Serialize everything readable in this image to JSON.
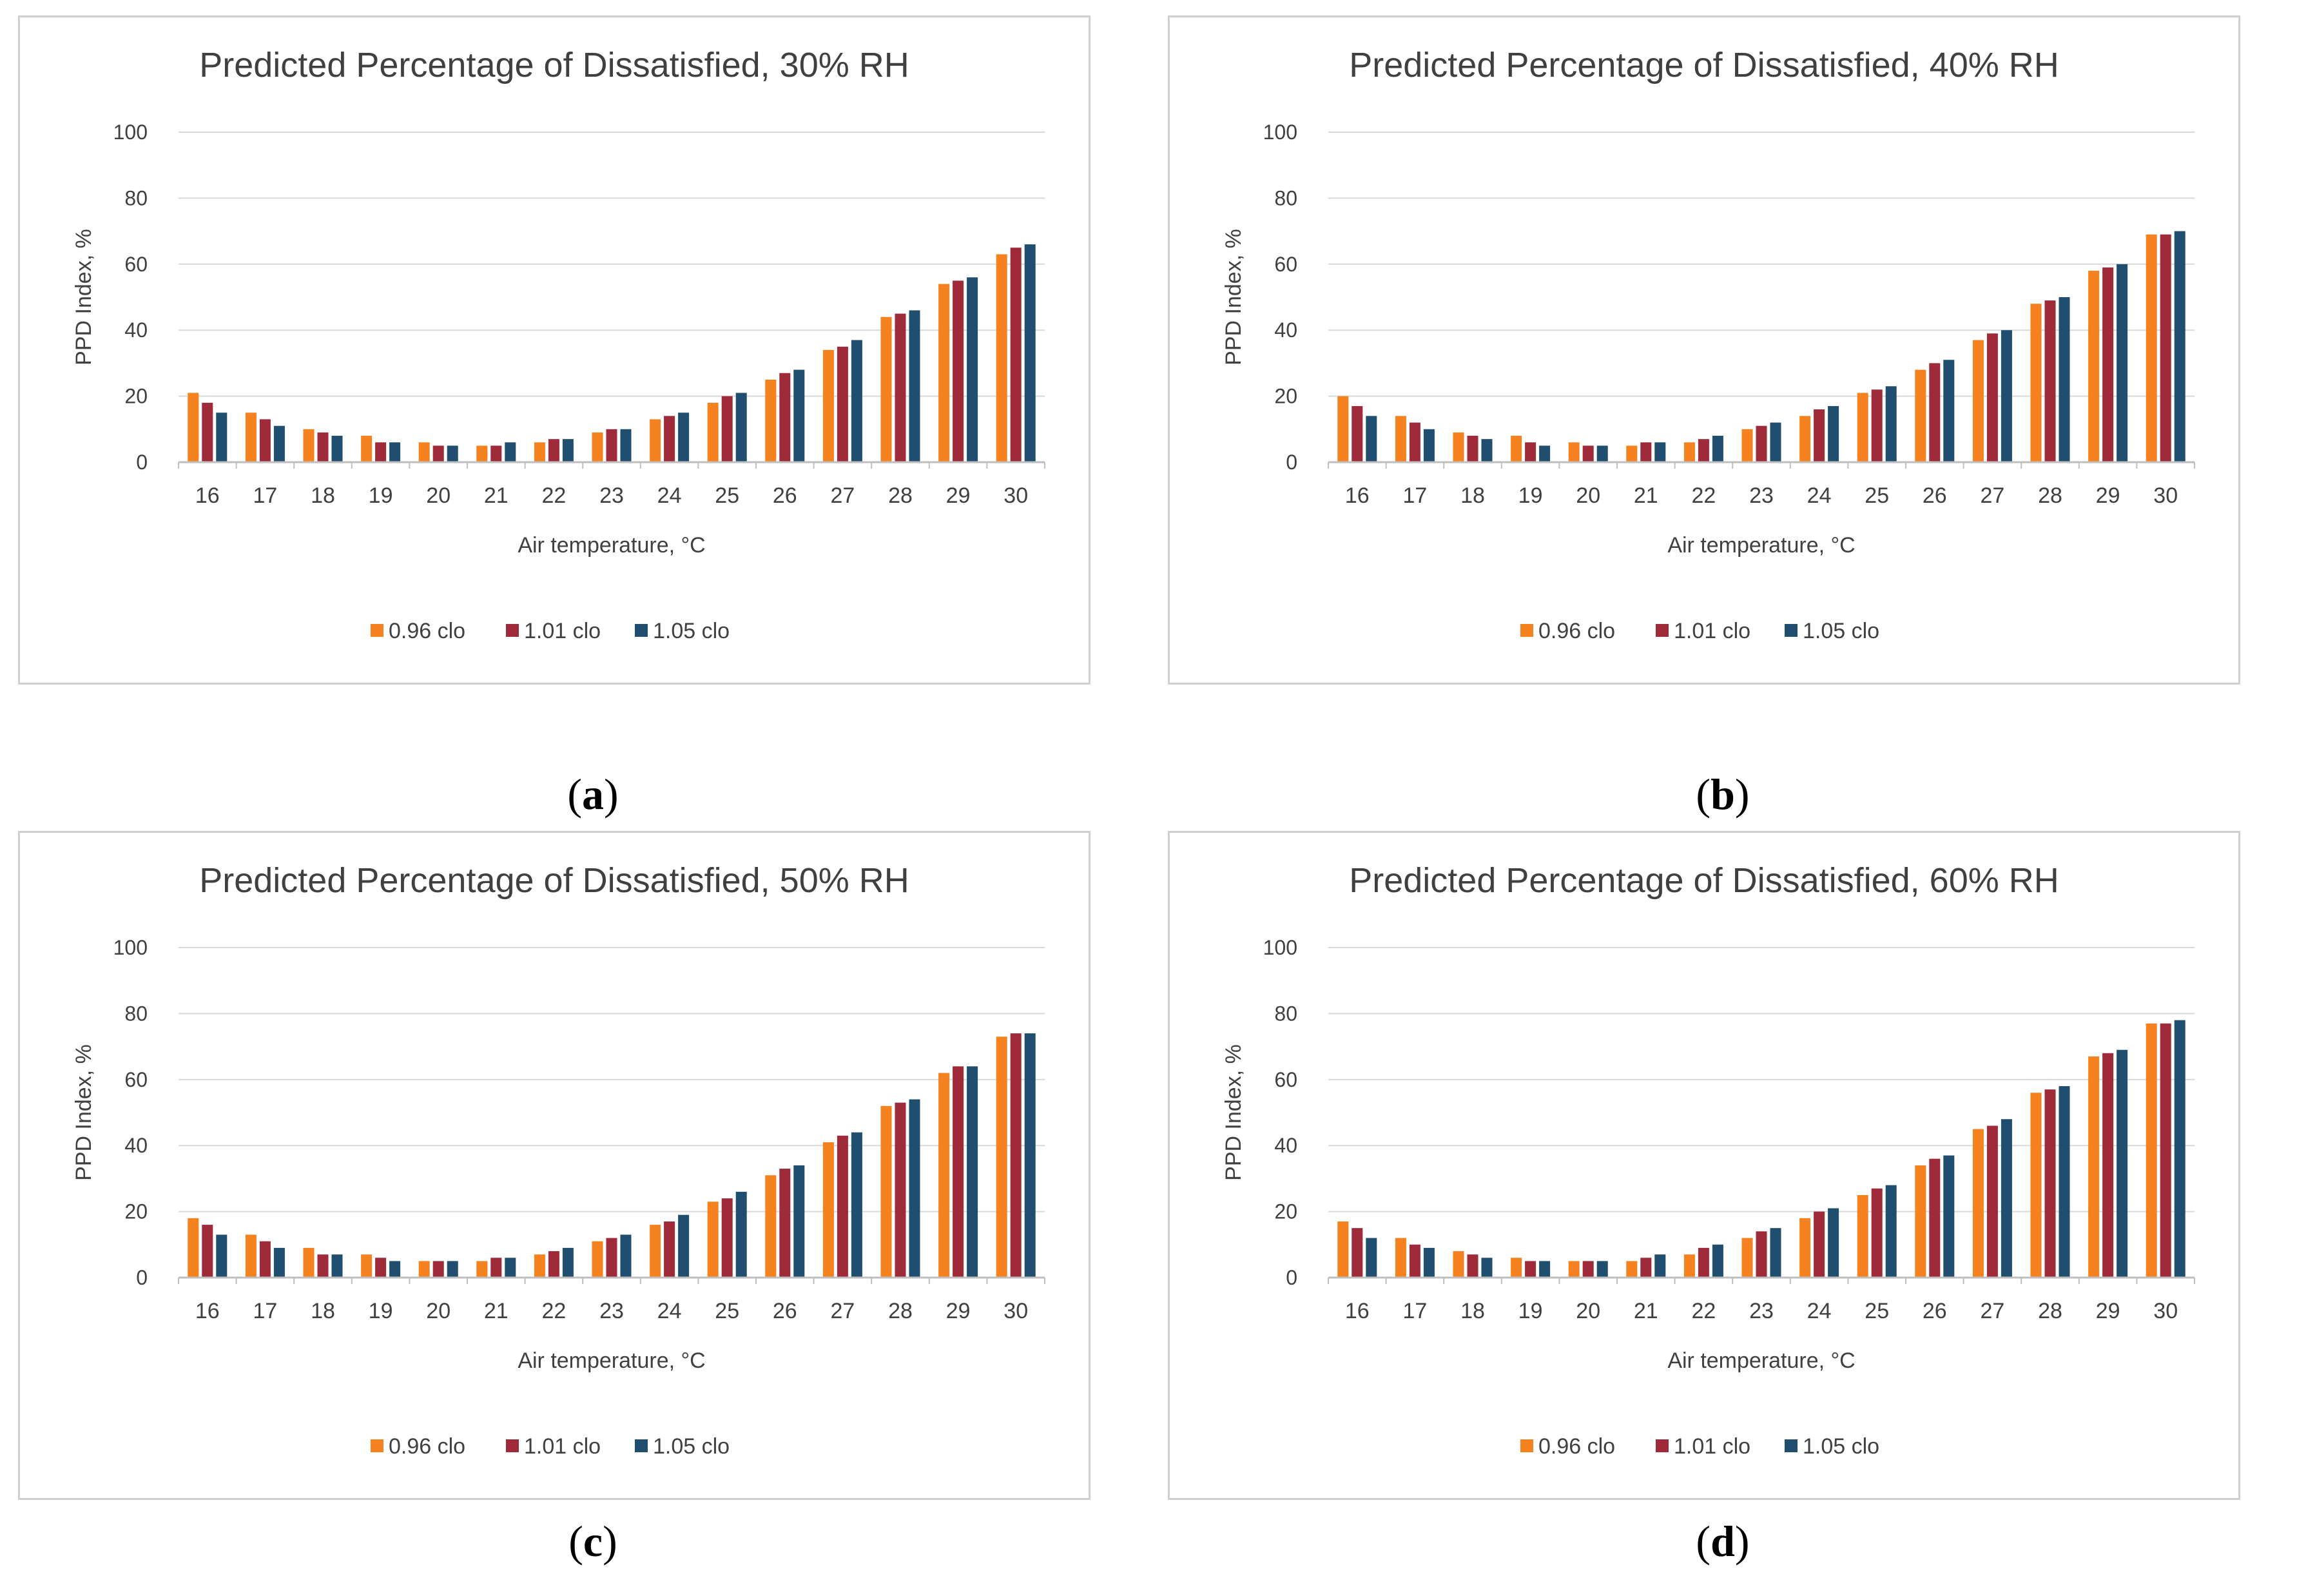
{
  "colors": {
    "s096": "#F5821F",
    "s101": "#9E2A3A",
    "s105": "#1F4E6E",
    "grid": "#d9d9d9",
    "axis": "#bfbfbf",
    "text": "#404040"
  },
  "chart_data": [
    {
      "id": "a",
      "caption_letter": "a",
      "type": "bar",
      "title": "Predicted Percentage of Dissatisfied, 30% RH",
      "xlabel": "Air temperature,  °C",
      "ylabel": "PPD Index, %",
      "ylim": [
        0,
        100
      ],
      "yticks": [
        "0",
        "20",
        "40",
        "60",
        "80",
        "100"
      ],
      "legend_position": "bottom-center",
      "categories": [
        "16",
        "17",
        "18",
        "19",
        "20",
        "21",
        "22",
        "23",
        "24",
        "25",
        "26",
        "27",
        "28",
        "29",
        "30"
      ],
      "series": [
        {
          "name": "0.96 clo",
          "values": [
            21,
            15,
            10,
            8,
            6,
            5,
            6,
            9,
            13,
            18,
            25,
            34,
            44,
            54,
            63
          ]
        },
        {
          "name": "1.01 clo",
          "values": [
            18,
            13,
            9,
            6,
            5,
            5,
            7,
            10,
            14,
            20,
            27,
            35,
            45,
            55,
            65
          ]
        },
        {
          "name": "1.05 clo",
          "values": [
            15,
            11,
            8,
            6,
            5,
            6,
            7,
            10,
            15,
            21,
            28,
            37,
            46,
            56,
            66
          ]
        }
      ]
    },
    {
      "id": "b",
      "caption_letter": "b",
      "type": "bar",
      "title": "Predicted Percentage of Dissatisfied, 40% RH",
      "xlabel": "Air temperature,  °C",
      "ylabel": "PPD Index, %",
      "ylim": [
        0,
        100
      ],
      "yticks": [
        "0",
        "20",
        "40",
        "60",
        "80",
        "100"
      ],
      "legend_position": "bottom-center",
      "categories": [
        "16",
        "17",
        "18",
        "19",
        "20",
        "21",
        "22",
        "23",
        "24",
        "25",
        "26",
        "27",
        "28",
        "29",
        "30"
      ],
      "series": [
        {
          "name": "0.96 clo",
          "values": [
            20,
            14,
            9,
            8,
            6,
            5,
            6,
            10,
            14,
            21,
            28,
            37,
            48,
            58,
            69
          ]
        },
        {
          "name": "1.01 clo",
          "values": [
            17,
            12,
            8,
            6,
            5,
            6,
            7,
            11,
            16,
            22,
            30,
            39,
            49,
            59,
            69
          ]
        },
        {
          "name": "1.05 clo",
          "values": [
            14,
            10,
            7,
            5,
            5,
            6,
            8,
            12,
            17,
            23,
            31,
            40,
            50,
            60,
            70
          ]
        }
      ]
    },
    {
      "id": "c",
      "caption_letter": "c",
      "type": "bar",
      "title": "Predicted Percentage of Dissatisfied, 50% RH",
      "xlabel": "Air temperature,  °C",
      "ylabel": "PPD Index, %",
      "ylim": [
        0,
        100
      ],
      "yticks": [
        "0",
        "20",
        "40",
        "60",
        "80",
        "100"
      ],
      "legend_position": "bottom-center",
      "categories": [
        "16",
        "17",
        "18",
        "19",
        "20",
        "21",
        "22",
        "23",
        "24",
        "25",
        "26",
        "27",
        "28",
        "29",
        "30"
      ],
      "series": [
        {
          "name": "0.96 clo",
          "values": [
            18,
            13,
            9,
            7,
            5,
            5,
            7,
            11,
            16,
            23,
            31,
            41,
            52,
            62,
            73
          ]
        },
        {
          "name": "1.01 clo",
          "values": [
            16,
            11,
            7,
            6,
            5,
            6,
            8,
            12,
            17,
            24,
            33,
            43,
            53,
            64,
            74
          ]
        },
        {
          "name": "1.05 clo",
          "values": [
            13,
            9,
            7,
            5,
            5,
            6,
            9,
            13,
            19,
            26,
            34,
            44,
            54,
            64,
            74
          ]
        }
      ]
    },
    {
      "id": "d",
      "caption_letter": "d",
      "type": "bar",
      "title": "Predicted Percentage of Dissatisfied, 60% RH",
      "xlabel": "Air temperature,  °C",
      "ylabel": "PPD Index, %",
      "ylim": [
        0,
        100
      ],
      "yticks": [
        "0",
        "20",
        "40",
        "60",
        "80",
        "100"
      ],
      "legend_position": "bottom-center",
      "categories": [
        "16",
        "17",
        "18",
        "19",
        "20",
        "21",
        "22",
        "23",
        "24",
        "25",
        "26",
        "27",
        "28",
        "29",
        "30"
      ],
      "series": [
        {
          "name": "0.96 clo",
          "values": [
            17,
            12,
            8,
            6,
            5,
            5,
            7,
            12,
            18,
            25,
            34,
            45,
            56,
            67,
            77
          ]
        },
        {
          "name": "1.01 clo",
          "values": [
            15,
            10,
            7,
            5,
            5,
            6,
            9,
            14,
            20,
            27,
            36,
            46,
            57,
            68,
            77
          ]
        },
        {
          "name": "1.05 clo",
          "values": [
            12,
            9,
            6,
            5,
            5,
            7,
            10,
            15,
            21,
            28,
            37,
            48,
            58,
            69,
            78
          ]
        }
      ]
    }
  ]
}
